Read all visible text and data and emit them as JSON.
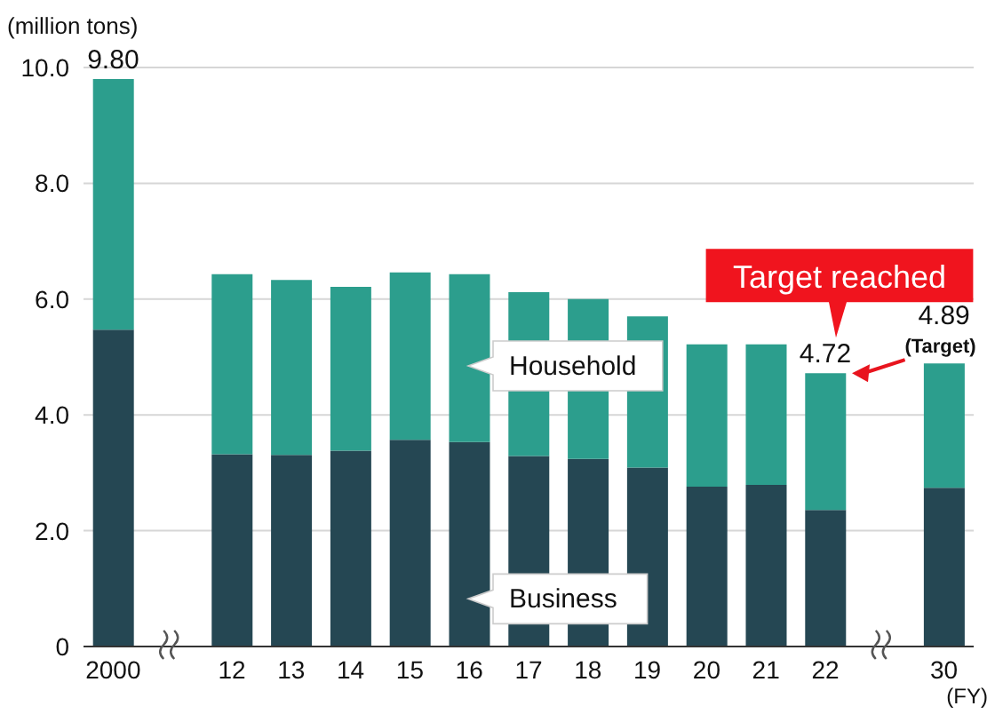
{
  "chart_data": {
    "type": "bar",
    "stacked": true,
    "ylabel": "(million tons)",
    "xlabel": "(FY)",
    "categories": [
      "2000",
      null,
      "12",
      "13",
      "14",
      "15",
      "16",
      "17",
      "18",
      "19",
      "20",
      "21",
      "22",
      null,
      "30"
    ],
    "series": [
      {
        "name": "Business",
        "color": "#254753",
        "values": [
          5.47,
          null,
          3.32,
          3.31,
          3.38,
          3.57,
          3.53,
          3.29,
          3.24,
          3.09,
          2.76,
          2.79,
          2.36,
          null,
          2.74
        ]
      },
      {
        "name": "Household",
        "color": "#2c9e8d",
        "values": [
          4.33,
          null,
          3.11,
          3.02,
          2.83,
          2.89,
          2.9,
          2.83,
          2.76,
          2.61,
          2.46,
          2.43,
          2.36,
          null,
          2.15
        ]
      }
    ],
    "totals": [
      "9.80",
      null,
      null,
      null,
      null,
      null,
      null,
      null,
      null,
      null,
      null,
      null,
      "4.72",
      null,
      "4.89"
    ],
    "annotations": [
      {
        "text": "Target reached",
        "x": "22",
        "y": 4.72
      },
      {
        "text": "(Target)",
        "x": "30",
        "y": 4.89
      }
    ],
    "ylim": [
      0,
      10
    ],
    "yticks": [
      0,
      {
        "value": 2,
        "label": "2.0"
      },
      {
        "value": 4,
        "label": "4.0"
      },
      {
        "value": 6,
        "label": "6.0"
      },
      {
        "value": 8,
        "label": "8.0"
      },
      {
        "value": 10,
        "label": "10.0"
      }
    ],
    "grid": "y",
    "legend": false
  }
}
